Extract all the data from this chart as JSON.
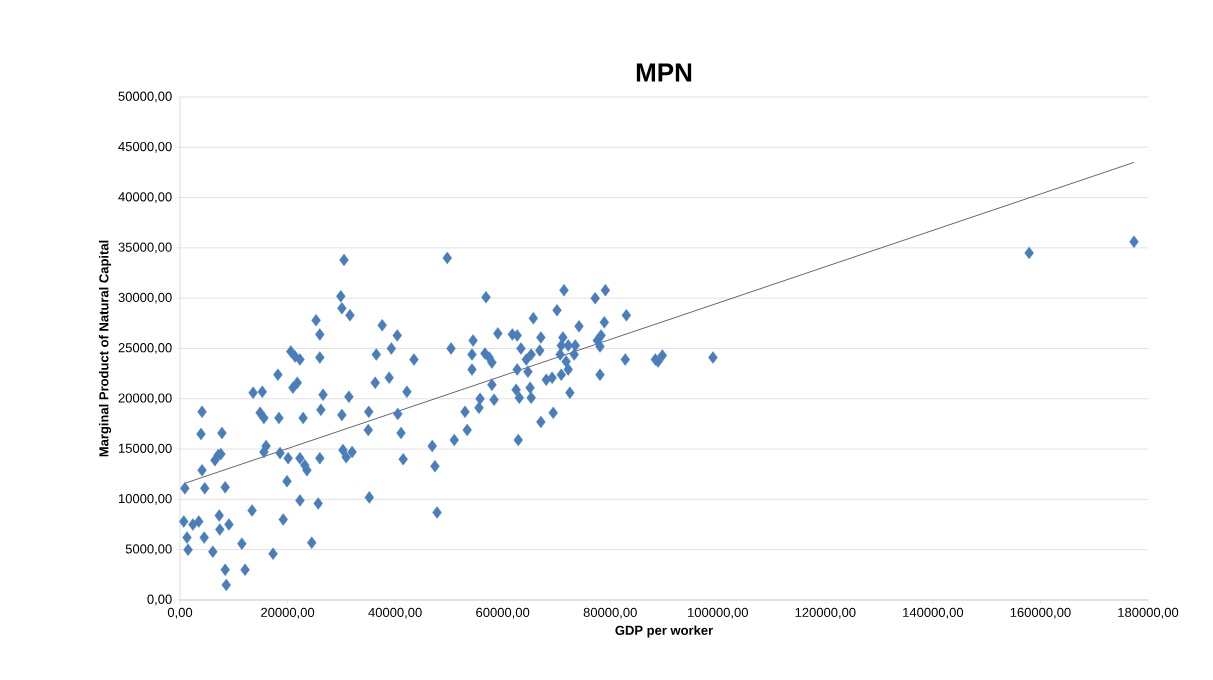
{
  "chart_data": {
    "type": "scatter",
    "title": "MPN",
    "xlabel": "GDP per worker",
    "ylabel": "Marginal Product of Natural Capital",
    "xlim": [
      0,
      180000
    ],
    "ylim": [
      0,
      50000
    ],
    "grid": "y",
    "marker": "diamond",
    "xticks": [
      {
        "value": 0,
        "label": "0,00"
      },
      {
        "value": 20000,
        "label": "20000,00"
      },
      {
        "value": 40000,
        "label": "40000,00"
      },
      {
        "value": 60000,
        "label": "60000,00"
      },
      {
        "value": 80000,
        "label": "80000,00"
      },
      {
        "value": 100000,
        "label": "100000,00"
      },
      {
        "value": 120000,
        "label": "120000,00"
      },
      {
        "value": 140000,
        "label": "140000,00"
      },
      {
        "value": 160000,
        "label": "160000,00"
      },
      {
        "value": 180000,
        "label": "180000,00"
      }
    ],
    "yticks": [
      {
        "value": 0,
        "label": "0,00"
      },
      {
        "value": 5000,
        "label": "5000,00"
      },
      {
        "value": 10000,
        "label": "10000,00"
      },
      {
        "value": 15000,
        "label": "15000,00"
      },
      {
        "value": 20000,
        "label": "20000,00"
      },
      {
        "value": 25000,
        "label": "25000,00"
      },
      {
        "value": 30000,
        "label": "30000,00"
      },
      {
        "value": 35000,
        "label": "35000,00"
      },
      {
        "value": 40000,
        "label": "40000,00"
      },
      {
        "value": 45000,
        "label": "45000,00"
      },
      {
        "value": 50000,
        "label": "50000,00"
      }
    ],
    "series": [
      {
        "color": "#4a7ebb",
        "x": [
          700,
          900,
          1500,
          1300,
          2400,
          3500,
          4100,
          3900,
          4100,
          4600,
          4500,
          6100,
          6500,
          7100,
          7600,
          7800,
          7300,
          7400,
          8400,
          8400,
          8600,
          9100,
          11500,
          12100,
          13400,
          13600,
          15300,
          14900,
          15600,
          15600,
          16000,
          17300,
          18200,
          18400,
          18600,
          19200,
          19900,
          20100,
          20600,
          21000,
          21400,
          21800,
          22300,
          22300,
          22300,
          22900,
          23200,
          23600,
          24500,
          25300,
          25700,
          26000,
          26000,
          26200,
          26000,
          26600,
          29900,
          30100,
          30100,
          30500,
          30300,
          30900,
          31400,
          31600,
          32000,
          35000,
          35100,
          35200,
          36300,
          36500,
          37600,
          38900,
          39300,
          40400,
          40500,
          41100,
          41500,
          42200,
          43500,
          46900,
          47400,
          47800,
          49700,
          50400,
          51000,
          53000,
          53400,
          54300,
          54300,
          54500,
          55600,
          55800,
          56700,
          56900,
          57500,
          58000,
          58400,
          58000,
          59100,
          61800,
          62700,
          62500,
          62700,
          62900,
          63100,
          63400,
          64400,
          64700,
          65100,
          65300,
          65700,
          65300,
          67100,
          66900,
          67100,
          68100,
          69200,
          69400,
          70100,
          70700,
          70900,
          70900,
          71200,
          71400,
          71800,
          72200,
          72200,
          72500,
          73300,
          73500,
          74200,
          77200,
          77600,
          78100,
          78100,
          78300,
          78900,
          79100,
          83000,
          82800,
          88400,
          88900,
          89700,
          99100,
          157900,
          177400
        ],
        "values": [
          7800,
          11100,
          5000,
          6200,
          7500,
          7800,
          18700,
          16500,
          12900,
          11100,
          6200,
          4800,
          13900,
          14400,
          14500,
          16600,
          8400,
          7000,
          11200,
          3000,
          1500,
          7500,
          5600,
          3000,
          8900,
          20600,
          20700,
          18600,
          18100,
          14700,
          15300,
          4600,
          22400,
          18100,
          14600,
          8000,
          11800,
          14100,
          24700,
          21100,
          24200,
          21600,
          23900,
          14100,
          9900,
          18100,
          13400,
          12900,
          5700,
          27800,
          9600,
          26400,
          24100,
          18900,
          14100,
          20400,
          30200,
          29000,
          18400,
          33800,
          14900,
          14200,
          20200,
          28300,
          14700,
          16900,
          18700,
          10200,
          21600,
          24400,
          27300,
          22100,
          25000,
          26300,
          18500,
          16600,
          14000,
          20700,
          23900,
          15300,
          13300,
          8700,
          34000,
          25000,
          15900,
          18700,
          16900,
          22900,
          24400,
          25800,
          19100,
          20000,
          24500,
          30100,
          24100,
          21400,
          19900,
          23600,
          26500,
          26400,
          26300,
          20900,
          22900,
          15900,
          20100,
          25000,
          23900,
          22700,
          21100,
          24400,
          28000,
          20100,
          26100,
          24800,
          17700,
          21900,
          22100,
          18600,
          28800,
          24400,
          25300,
          22400,
          26100,
          30800,
          23700,
          22900,
          25300,
          20600,
          24400,
          25300,
          27200,
          30000,
          25800,
          22400,
          25200,
          26300,
          27600,
          30800,
          28300,
          23900,
          23900,
          23700,
          24300,
          24100,
          34500,
          35600
        ]
      },
      {
        "type": "line",
        "color": "#404040",
        "marker": "none",
        "x": [
          900,
          177400
        ],
        "values": [
          11600,
          43500
        ]
      }
    ]
  }
}
